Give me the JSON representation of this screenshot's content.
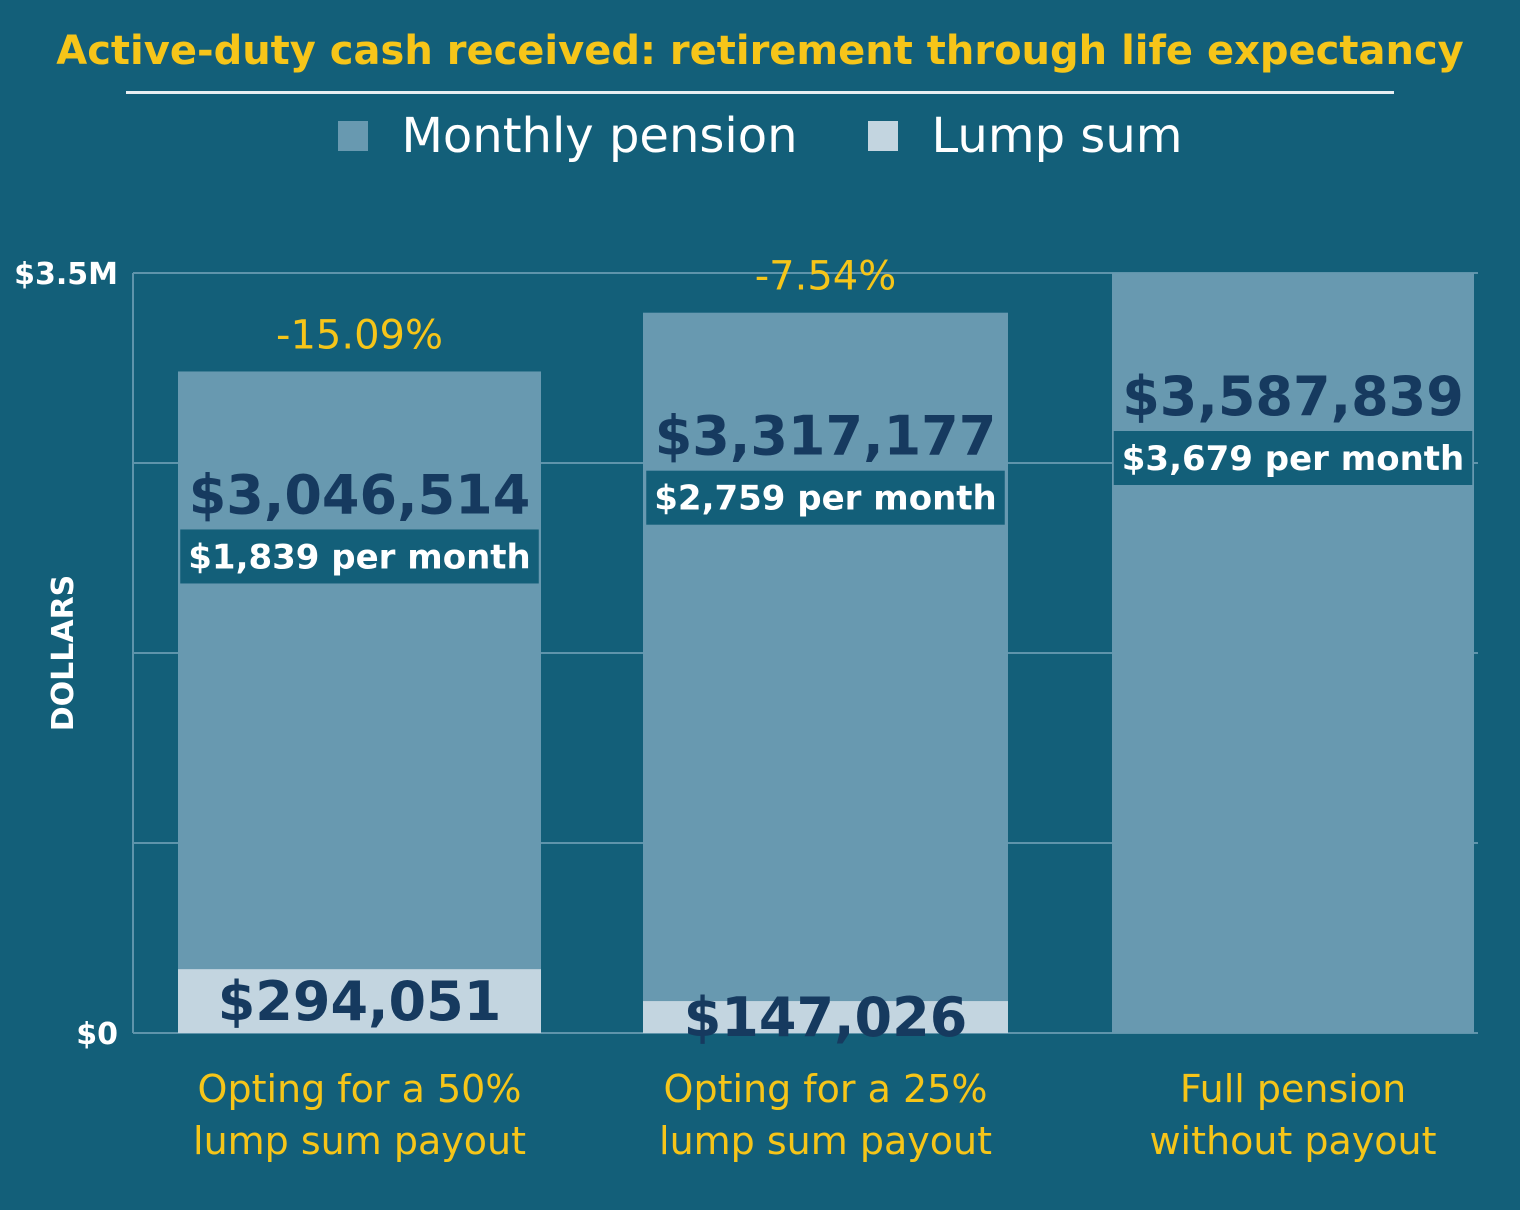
{
  "chart_data": {
    "type": "bar",
    "stacked": true,
    "title": "Active-duty cash received: retirement through life expectancy",
    "ylabel": "DOLLARS",
    "ylim": [
      0,
      3500000
    ],
    "yticks": [
      {
        "value": 0,
        "label": "$0"
      },
      {
        "value": 3500000,
        "label": "$3.5M"
      }
    ],
    "grid": true,
    "legend_position": "top",
    "categories": [
      [
        "Opting for a 50%",
        "lump sum payout"
      ],
      [
        "Opting for a 25%",
        "lump sum payout"
      ],
      [
        "Full pension",
        "without payout"
      ]
    ],
    "series": [
      {
        "name": "Lump sum",
        "color": "#c3d5e0",
        "values": [
          294051,
          147026,
          0
        ],
        "labels": [
          "$294,051",
          "$147,026",
          ""
        ]
      },
      {
        "name": "Monthly pension",
        "color": "#6899b0",
        "values": [
          3046514,
          3317177,
          3587839
        ],
        "labels": [
          "$3,046,514",
          "$3,317,177",
          "$3,587,839"
        ]
      }
    ],
    "monthly_labels": [
      "$1,839 per month",
      "$2,759 per month",
      "$3,679 per month"
    ],
    "change_labels": [
      "-15.09%",
      "-7.54%",
      ""
    ],
    "colors": {
      "background": "#135f79",
      "title": "#f6c519",
      "value_text": "#163a5f",
      "label_box": "#135f79"
    }
  }
}
